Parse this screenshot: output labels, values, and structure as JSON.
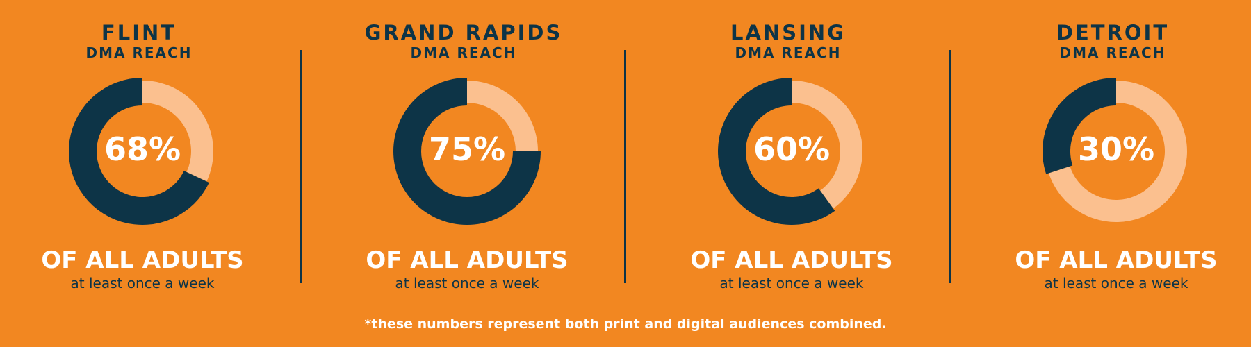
{
  "colors": {
    "background": "#F28721",
    "reached": "#0D3447",
    "remainder": "#FBC08F",
    "text_light": "#FFFFFF",
    "text_dark": "#0D3447"
  },
  "chart_data": [
    {
      "type": "pie",
      "city": "FLINT",
      "subtitle": "DMA REACH",
      "value": 68,
      "value_label": "68%",
      "headline": "OF ALL ADULTS",
      "caption": "at least once a week"
    },
    {
      "type": "pie",
      "city": "GRAND RAPIDS",
      "subtitle": "DMA REACH",
      "value": 75,
      "value_label": "75%",
      "headline": "OF ALL ADULTS",
      "caption": "at least once a week"
    },
    {
      "type": "pie",
      "city": "LANSING",
      "subtitle": "DMA REACH",
      "value": 60,
      "value_label": "60%",
      "headline": "OF ALL ADULTS",
      "caption": "at least once a week"
    },
    {
      "type": "pie",
      "city": "DETROIT",
      "subtitle": "DMA REACH",
      "value": 30,
      "value_label": "30%",
      "headline": "OF ALL ADULTS",
      "caption": "at least once a week"
    }
  ],
  "footnote": "*these numbers represent both print and digital audiences combined."
}
